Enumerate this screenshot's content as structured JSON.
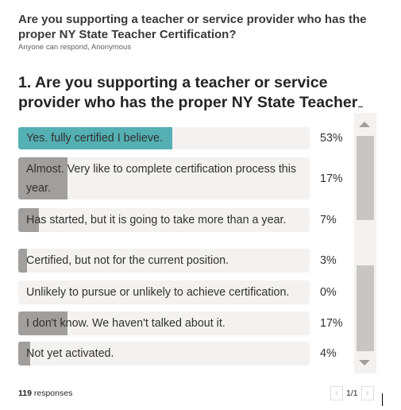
{
  "header": {
    "title": "Are you supporting a teacher or service provider who has the proper NY State Teacher Certification?",
    "subtitle": "Anyone can respond, Anonymous"
  },
  "question": {
    "title": "1. Are you supporting a teacher or service provider who has the proper NY State Teacher"
  },
  "options": [
    {
      "label": "Yes. fully certified I believe.",
      "percent": "53%",
      "fill": 0.53,
      "accent": true
    },
    {
      "label": "Almost. Very like to complete certification process this year.",
      "percent": "17%",
      "fill": 0.17,
      "accent": false
    },
    {
      "label": "Has started, but it is going to take more than a year.",
      "percent": "7%",
      "fill": 0.07,
      "accent": false
    },
    {
      "label": "Certified, but not for the current position.",
      "percent": "3%",
      "fill": 0.03,
      "accent": false
    },
    {
      "label": "Unlikely to pursue or unlikely to achieve certification.",
      "percent": "0%",
      "fill": 0.0,
      "accent": false
    },
    {
      "label": "I don't know. We haven't talked about it.",
      "percent": "17%",
      "fill": 0.17,
      "accent": false
    },
    {
      "label": "Not yet activated.",
      "percent": "4%",
      "fill": 0.04,
      "accent": false
    }
  ],
  "footer": {
    "count": "119",
    "responses_label": "responses",
    "page": "1/1"
  },
  "icons": {
    "prev": "chevron-left-icon",
    "next": "chevron-right-icon",
    "scroll_up": "triangle-up-icon",
    "scroll_down": "triangle-down-icon"
  },
  "colors": {
    "accent": "#54b0b3",
    "bar_fill": "#a19f9d",
    "bar_track": "#f3f2f1"
  }
}
